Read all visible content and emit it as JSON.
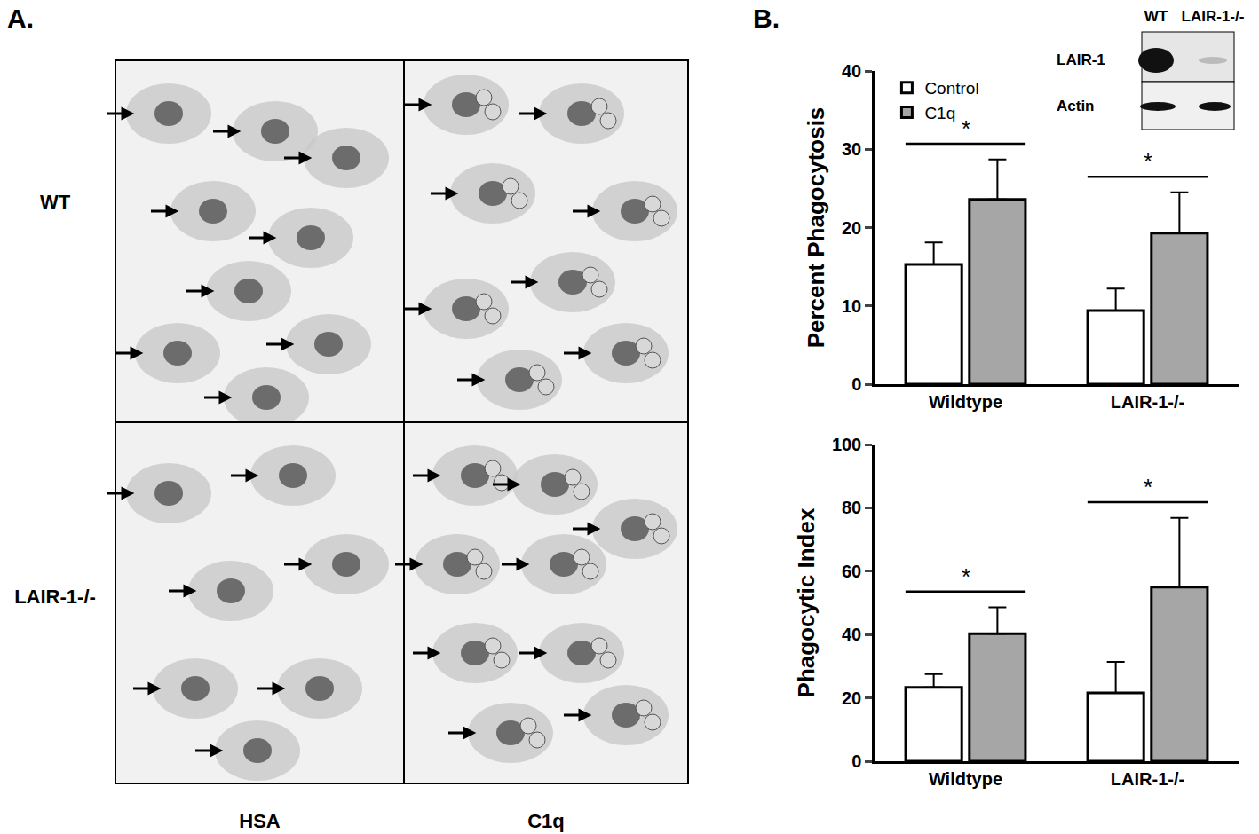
{
  "panel_labels": [
    "A.",
    "B."
  ],
  "panel_a": {
    "rows": [
      "WT",
      "LAIR-1-/-"
    ],
    "columns": [
      "HSA",
      "C1q"
    ]
  },
  "blot": {
    "lanes": [
      "WT",
      "LAIR-1-/-"
    ],
    "rows": [
      "LAIR-1",
      "Actin"
    ]
  },
  "chart_data": [
    {
      "type": "bar",
      "y_label": "Percent Phagocytosis",
      "categories": [
        "Wildtype",
        "LAIR-1-/-"
      ],
      "series": [
        {
          "name": "Control",
          "color": "#ffffff",
          "values": [
            15.3,
            9.4
          ],
          "error": [
            2.8,
            2.8
          ]
        },
        {
          "name": "C1q",
          "color": "#a6a6a6",
          "values": [
            23.6,
            19.3
          ],
          "error": [
            5.1,
            5.2
          ]
        }
      ],
      "ylim": [
        0,
        40
      ],
      "yticks": [
        0,
        10,
        20,
        30,
        40
      ],
      "grid": false,
      "legend": "top left",
      "annotations": [
        {
          "category": "Wildtype",
          "text": "*"
        },
        {
          "category": "LAIR-1-/-",
          "text": "*"
        }
      ]
    },
    {
      "type": "bar",
      "y_label": "Phagocytic Index",
      "categories": [
        "Wildtype",
        "LAIR-1-/-"
      ],
      "series": [
        {
          "name": "Control",
          "color": "#ffffff",
          "values": [
            23.3,
            21.6
          ],
          "error": [
            4.2,
            9.8
          ]
        },
        {
          "name": "C1q",
          "color": "#a6a6a6",
          "values": [
            40.3,
            55.0
          ],
          "error": [
            8.3,
            21.8
          ]
        }
      ],
      "ylim": [
        0,
        100
      ],
      "yticks": [
        0,
        20,
        40,
        60,
        80,
        100
      ],
      "grid": false,
      "annotations": [
        {
          "category": "Wildtype",
          "text": "*"
        },
        {
          "category": "LAIR-1-/-",
          "text": "*"
        }
      ]
    }
  ]
}
